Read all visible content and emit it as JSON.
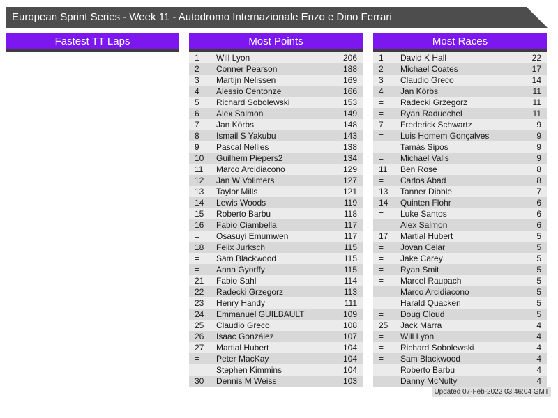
{
  "colors": {
    "title_bar_bg": "#4d4d4d",
    "panel_header_bg": "#7d17f0",
    "panel_header_border": "#3d3d3d",
    "row_odd_bg": "#ebebeb",
    "row_even_bg": "#d8d8d8",
    "row_text": "#1a1a1a",
    "footer_bg": "#e0e0e0"
  },
  "title_bar": {
    "title": "European Sprint Series - Week 11 - Autodromo Internazionale Enzo e Dino Ferrari"
  },
  "panels": [
    {
      "title": "Fastest TT Laps",
      "rows": []
    },
    {
      "title": "Most Points",
      "rows": [
        [
          "1",
          "Will Lyon",
          "206"
        ],
        [
          "2",
          "Conner Pearson",
          "188"
        ],
        [
          "3",
          "Martijn Nelissen",
          "169"
        ],
        [
          "4",
          "Alessio Centonze",
          "166"
        ],
        [
          "5",
          "Richard Sobolewski",
          "153"
        ],
        [
          "6",
          "Alex Salmon",
          "149"
        ],
        [
          "7",
          "Jan Körbs",
          "148"
        ],
        [
          "8",
          "Ismail S Yakubu",
          "143"
        ],
        [
          "9",
          "Pascal Nellies",
          "138"
        ],
        [
          "10",
          "Guilhem Piepers2",
          "134"
        ],
        [
          "11",
          "Marco Arcidiacono",
          "129"
        ],
        [
          "12",
          "Jan W Vollmers",
          "127"
        ],
        [
          "13",
          "Taylor Mills",
          "121"
        ],
        [
          "14",
          "Lewis Woods",
          "119"
        ],
        [
          "15",
          "Roberto Barbu",
          "118"
        ],
        [
          "16",
          "Fabio Ciambella",
          "117"
        ],
        [
          "=",
          "Osasuyi Emumwen",
          "117"
        ],
        [
          "18",
          "Felix Jurksch",
          "115"
        ],
        [
          "=",
          "Sam Blackwood",
          "115"
        ],
        [
          "=",
          "Anna Gyorffy",
          "115"
        ],
        [
          "21",
          "Fabio Sahl",
          "114"
        ],
        [
          "22",
          "Radecki Grzegorz",
          "113"
        ],
        [
          "23",
          "Henry Handy",
          "111"
        ],
        [
          "24",
          "Emmanuel GUILBAULT",
          "109"
        ],
        [
          "25",
          "Claudio Greco",
          "108"
        ],
        [
          "26",
          "Isaac González",
          "107"
        ],
        [
          "27",
          "Martial Hubert",
          "104"
        ],
        [
          "=",
          "Peter MacKay",
          "104"
        ],
        [
          "=",
          "Stephen Kimmins",
          "104"
        ],
        [
          "30",
          "Dennis M Weiss",
          "103"
        ]
      ]
    },
    {
      "title": "Most Races",
      "rows": [
        [
          "1",
          "David K Hall",
          "22"
        ],
        [
          "2",
          "Michael Coates",
          "17"
        ],
        [
          "3",
          "Claudio Greco",
          "14"
        ],
        [
          "4",
          "Jan Körbs",
          "11"
        ],
        [
          "=",
          "Radecki Grzegorz",
          "11"
        ],
        [
          "=",
          "Ryan Raduechel",
          "11"
        ],
        [
          "7",
          "Frederick Schwartz",
          "9"
        ],
        [
          "=",
          "Luis Homem Gonçalves",
          "9"
        ],
        [
          "=",
          "Tamás Sipos",
          "9"
        ],
        [
          "=",
          "Michael Valls",
          "9"
        ],
        [
          "11",
          "Ben Rose",
          "8"
        ],
        [
          "=",
          "Carlos Abad",
          "8"
        ],
        [
          "13",
          "Tanner Dibble",
          "7"
        ],
        [
          "14",
          "Quinten Flohr",
          "6"
        ],
        [
          "=",
          "Luke Santos",
          "6"
        ],
        [
          "=",
          "Alex Salmon",
          "6"
        ],
        [
          "17",
          "Martial Hubert",
          "5"
        ],
        [
          "=",
          "Jovan Celar",
          "5"
        ],
        [
          "=",
          "Jake Carey",
          "5"
        ],
        [
          "=",
          "Ryan Smit",
          "5"
        ],
        [
          "=",
          "Marcel Raupach",
          "5"
        ],
        [
          "=",
          "Marco Arcidiacono",
          "5"
        ],
        [
          "=",
          "Harald Quacken",
          "5"
        ],
        [
          "=",
          "Doug Cloud",
          "5"
        ],
        [
          "25",
          "Jack Marra",
          "4"
        ],
        [
          "=",
          "Will Lyon",
          "4"
        ],
        [
          "=",
          "Richard Sobolewski",
          "4"
        ],
        [
          "=",
          "Sam Blackwood",
          "4"
        ],
        [
          "=",
          "Roberto Barbu",
          "4"
        ],
        [
          "=",
          "Danny McNulty",
          "4"
        ]
      ]
    }
  ],
  "footer": {
    "updated_text": "Updated 07-Feb-2022 03:46:04 GMT"
  }
}
